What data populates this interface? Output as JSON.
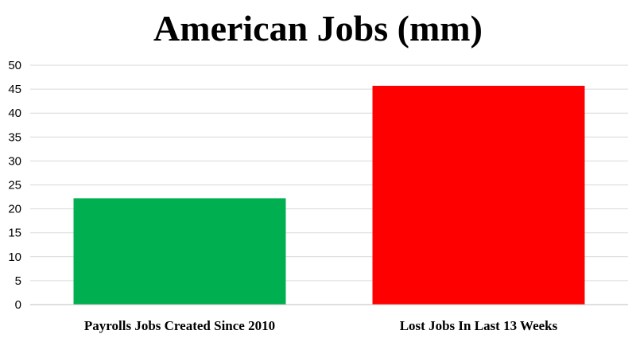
{
  "chart_data": {
    "type": "bar",
    "title": "American Jobs (mm)",
    "xlabel": "",
    "ylabel": "",
    "categories": [
      "Payrolls Jobs Created Since 2010",
      "Lost Jobs In Last 13 Weeks"
    ],
    "values": [
      22.2,
      45.7
    ],
    "colors": [
      "#00b050",
      "#ff0000"
    ],
    "ylim": [
      0,
      50
    ],
    "yticks": [
      0,
      5,
      10,
      15,
      20,
      25,
      30,
      35,
      40,
      45,
      50
    ],
    "grid": true,
    "legend": "none"
  }
}
